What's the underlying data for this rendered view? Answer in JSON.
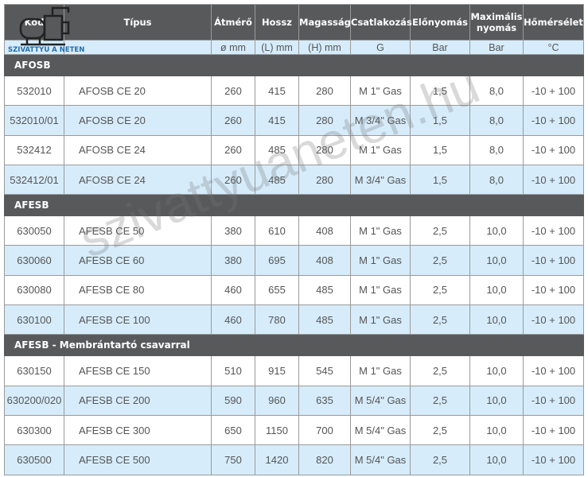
{
  "logo": {
    "text": "SZIVATTYÚ A NETEN"
  },
  "watermark": "szivattyuaneten.hu",
  "headers": [
    "Kód",
    "Típus",
    "Átmérő",
    "Hossz",
    "Magasság",
    "Csatlakozás",
    "Előnyomás",
    "Maximális nyomás",
    "Hőmérsélet"
  ],
  "units": [
    "",
    "",
    "ø mm",
    "(L) mm",
    "(H) mm",
    "G",
    "Bar",
    "Bar",
    "°C"
  ],
  "sections": [
    {
      "title": "AFOSB",
      "rows": [
        [
          "532010",
          "AFOSB CE 20",
          "260",
          "415",
          "280",
          "M 1\" Gas",
          "1,5",
          "8,0",
          "-10 + 100"
        ],
        [
          "532010/01",
          "AFOSB CE 20",
          "260",
          "415",
          "280",
          "M 3/4\" Gas",
          "1,5",
          "8,0",
          "-10 + 100"
        ],
        [
          "532412",
          "AFOSB CE 24",
          "260",
          "485",
          "280",
          "M 1\" Gas",
          "1,5",
          "8,0",
          "-10 + 100"
        ],
        [
          "532412/01",
          "AFOSB CE 24",
          "260",
          "485",
          "280",
          "M 3/4\" Gas",
          "1,5",
          "8,0",
          "-10 + 100"
        ]
      ]
    },
    {
      "title": "AFESB",
      "rows": [
        [
          "630050",
          "AFESB CE 50",
          "380",
          "610",
          "408",
          "M 1\" Gas",
          "2,5",
          "10,0",
          "-10 + 100"
        ],
        [
          "630060",
          "AFESB CE 60",
          "380",
          "695",
          "408",
          "M 1\" Gas",
          "2,5",
          "10,0",
          "-10 + 100"
        ],
        [
          "630080",
          "AFESB CE 80",
          "460",
          "655",
          "485",
          "M 1\" Gas",
          "2,5",
          "10,0",
          "-10 + 100"
        ],
        [
          "630100",
          "AFESB CE 100",
          "460",
          "780",
          "485",
          "M 1\" Gas",
          "2,5",
          "10,0",
          "-10 + 100"
        ]
      ]
    },
    {
      "title": "AFESB - Membrántartó csavarral",
      "rows": [
        [
          "630150",
          "AFESB CE 150",
          "510",
          "915",
          "545",
          "M 1\" Gas",
          "2,5",
          "10,0",
          "-10 + 100"
        ],
        [
          "630200/020",
          "AFESB CE 200",
          "590",
          "960",
          "635",
          "M 5/4\" Gas",
          "2,5",
          "10,0",
          "-10 + 100"
        ],
        [
          "630300",
          "AFESB CE 300",
          "650",
          "1150",
          "700",
          "M 5/4\" Gas",
          "2,5",
          "10,0",
          "-10 + 100"
        ],
        [
          "630500",
          "AFESB CE 500",
          "750",
          "1420",
          "820",
          "M 5/4\" Gas",
          "2,5",
          "10,0",
          "-10 + 100"
        ]
      ]
    }
  ]
}
